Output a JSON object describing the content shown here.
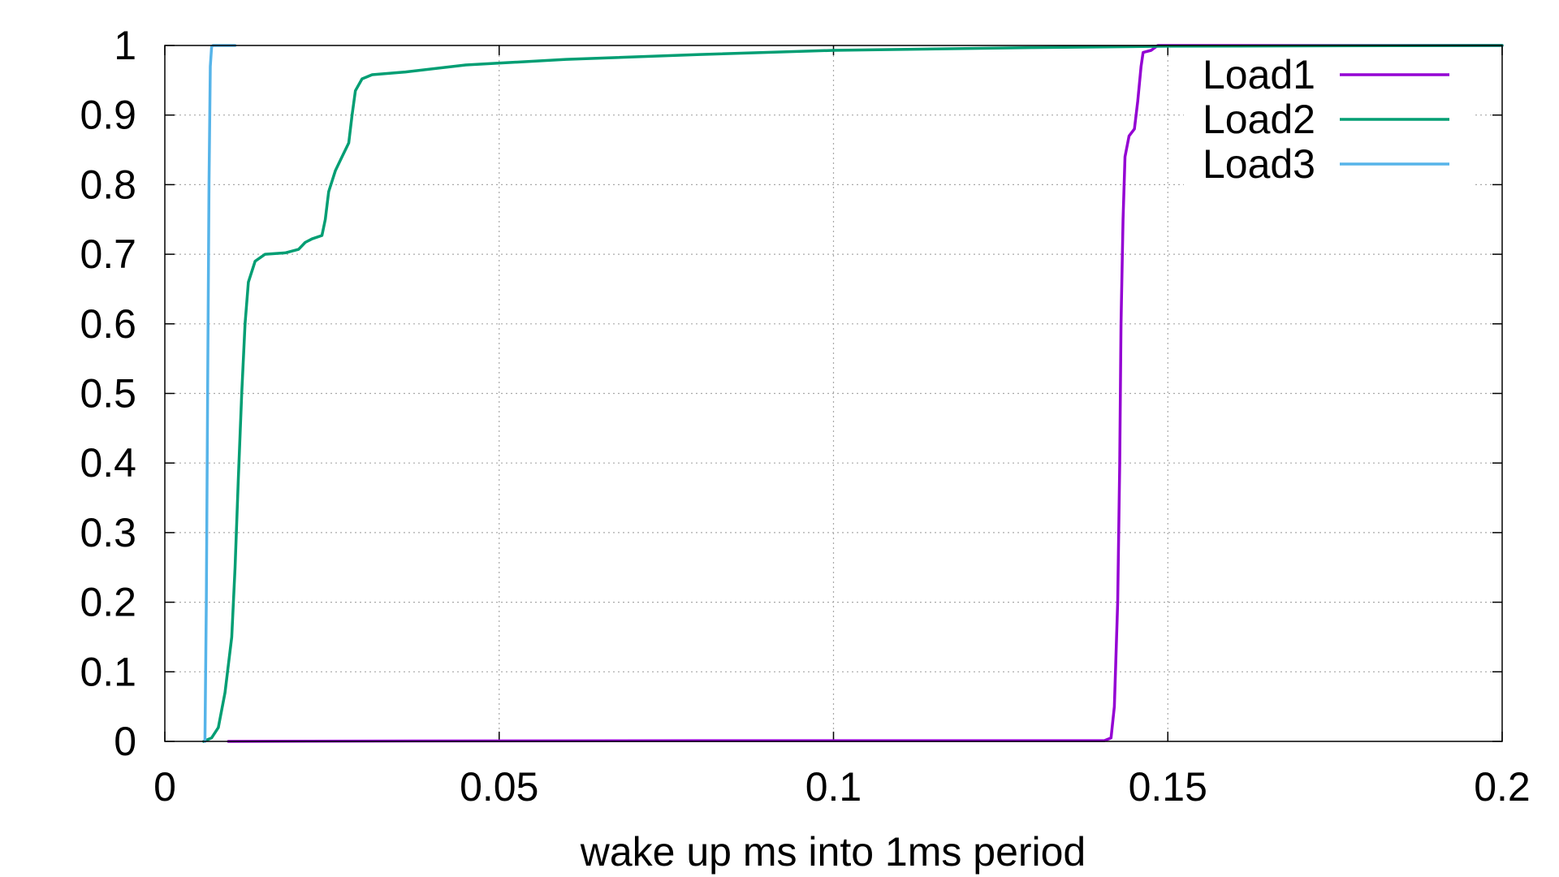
{
  "chart_data": {
    "type": "line",
    "title": "",
    "xlabel": "wake up ms into 1ms period",
    "ylabel": "",
    "xlim": [
      0,
      0.2
    ],
    "ylim": [
      0,
      1
    ],
    "x_ticks": [
      {
        "value": 0,
        "label": "0"
      },
      {
        "value": 0.05,
        "label": "0.05"
      },
      {
        "value": 0.1,
        "label": "0.1"
      },
      {
        "value": 0.15,
        "label": "0.15"
      },
      {
        "value": 0.2,
        "label": "0.2"
      }
    ],
    "y_ticks": [
      {
        "value": 0,
        "label": "0"
      },
      {
        "value": 0.1,
        "label": "0.1"
      },
      {
        "value": 0.2,
        "label": "0.2"
      },
      {
        "value": 0.3,
        "label": "0.3"
      },
      {
        "value": 0.4,
        "label": "0.4"
      },
      {
        "value": 0.5,
        "label": "0.5"
      },
      {
        "value": 0.6,
        "label": "0.6"
      },
      {
        "value": 0.7,
        "label": "0.7"
      },
      {
        "value": 0.8,
        "label": "0.8"
      },
      {
        "value": 0.9,
        "label": "0.9"
      },
      {
        "value": 1,
        "label": "1"
      }
    ],
    "grid": true,
    "legend_position": "top-right",
    "series": [
      {
        "name": "Load1",
        "color": "#9400d3",
        "points": [
          [
            0.0095,
            0
          ],
          [
            0.03,
            0.0005
          ],
          [
            0.08,
            0.001
          ],
          [
            0.12,
            0.001
          ],
          [
            0.1405,
            0.001
          ],
          [
            0.1415,
            0.005
          ],
          [
            0.142,
            0.05
          ],
          [
            0.1425,
            0.2
          ],
          [
            0.1428,
            0.4
          ],
          [
            0.143,
            0.6
          ],
          [
            0.1433,
            0.75
          ],
          [
            0.1436,
            0.84
          ],
          [
            0.1442,
            0.87
          ],
          [
            0.145,
            0.88
          ],
          [
            0.1455,
            0.92
          ],
          [
            0.146,
            0.97
          ],
          [
            0.1463,
            0.99
          ],
          [
            0.1475,
            0.993
          ],
          [
            0.1485,
            1.0
          ],
          [
            0.2,
            1.0
          ]
        ]
      },
      {
        "name": "Load2",
        "color": "#009e73",
        "points": [
          [
            0.0058,
            0
          ],
          [
            0.007,
            0.005
          ],
          [
            0.008,
            0.02
          ],
          [
            0.009,
            0.07
          ],
          [
            0.01,
            0.15
          ],
          [
            0.0105,
            0.25
          ],
          [
            0.011,
            0.38
          ],
          [
            0.0115,
            0.5
          ],
          [
            0.012,
            0.6
          ],
          [
            0.0125,
            0.66
          ],
          [
            0.0135,
            0.69
          ],
          [
            0.015,
            0.7
          ],
          [
            0.018,
            0.702
          ],
          [
            0.02,
            0.707
          ],
          [
            0.021,
            0.717
          ],
          [
            0.022,
            0.722
          ],
          [
            0.0235,
            0.727
          ],
          [
            0.024,
            0.75
          ],
          [
            0.0245,
            0.79
          ],
          [
            0.0255,
            0.82
          ],
          [
            0.0265,
            0.84
          ],
          [
            0.0275,
            0.86
          ],
          [
            0.028,
            0.9
          ],
          [
            0.0285,
            0.935
          ],
          [
            0.0295,
            0.952
          ],
          [
            0.031,
            0.958
          ],
          [
            0.036,
            0.962
          ],
          [
            0.045,
            0.972
          ],
          [
            0.06,
            0.98
          ],
          [
            0.08,
            0.987
          ],
          [
            0.1,
            0.993
          ],
          [
            0.13,
            0.997
          ],
          [
            0.15,
            0.999
          ],
          [
            0.2,
            1.0
          ]
        ]
      },
      {
        "name": "Load3",
        "color": "#56b4e9",
        "points": [
          [
            0.006,
            0
          ],
          [
            0.0062,
            0.2
          ],
          [
            0.0064,
            0.5
          ],
          [
            0.0066,
            0.8
          ],
          [
            0.0068,
            0.97
          ],
          [
            0.007,
            0.998
          ],
          [
            0.0072,
            1.0
          ],
          [
            0.0105,
            1.0
          ]
        ]
      }
    ]
  }
}
